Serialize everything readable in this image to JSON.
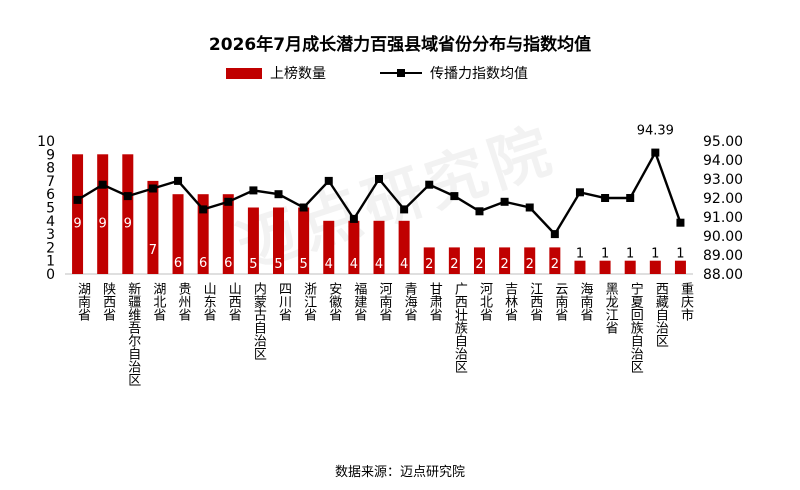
{
  "title": "2026年7月成长潜力百强县域省份分布与指数均值",
  "legend": {
    "bar_label": "上榜数量",
    "line_label": "传播力指数均值"
  },
  "source": "数据来源：迈点研究院",
  "watermark": "迈点研究院",
  "colors": {
    "bar": "#c00000",
    "line": "#000000",
    "bar_label": "#ffffff"
  },
  "chart_data": {
    "type": "bar",
    "title": "2026年7月成长潜力百强县域省份分布与指数均值",
    "categories": [
      "湖南省",
      "陕西省",
      "新疆维吾尔自治区",
      "湖北省",
      "贵州省",
      "山东省",
      "山西省",
      "内蒙古自治区",
      "四川省",
      "浙江省",
      "安徽省",
      "福建省",
      "河南省",
      "青海省",
      "甘肃省",
      "广西壮族自治区",
      "河北省",
      "吉林省",
      "江西省",
      "云南省",
      "海南省",
      "黑龙江省",
      "宁夏回族自治区",
      "西藏自治区",
      "重庆市"
    ],
    "series": [
      {
        "name": "上榜数量",
        "type": "bar",
        "axis": "left",
        "values": [
          9,
          9,
          9,
          7,
          6,
          6,
          6,
          5,
          5,
          5,
          4,
          4,
          4,
          4,
          2,
          2,
          2,
          2,
          2,
          2,
          1,
          1,
          1,
          1,
          1
        ]
      },
      {
        "name": "传播力指数均值",
        "type": "line",
        "axis": "right",
        "values": [
          91.9,
          92.7,
          92.1,
          92.5,
          92.9,
          91.4,
          91.8,
          92.4,
          92.2,
          91.5,
          92.9,
          90.9,
          93.0,
          91.4,
          92.7,
          92.1,
          91.3,
          91.8,
          91.5,
          90.1,
          92.3,
          92.0,
          92.0,
          94.39,
          90.7
        ]
      }
    ],
    "left_axis": {
      "ylim": [
        0,
        10
      ],
      "ticks": [
        "0",
        "1",
        "2",
        "3",
        "4",
        "5",
        "6",
        "7",
        "8",
        "9",
        "10"
      ]
    },
    "right_axis": {
      "ylim": [
        88.0,
        95.0
      ],
      "ticks": [
        "88.00",
        "89.00",
        "90.00",
        "91.00",
        "92.00",
        "93.00",
        "94.00",
        "95.00"
      ]
    },
    "annotations": [
      {
        "category": "西藏自治区",
        "text": "94.39"
      }
    ],
    "grid": false,
    "legend_position": "top"
  }
}
